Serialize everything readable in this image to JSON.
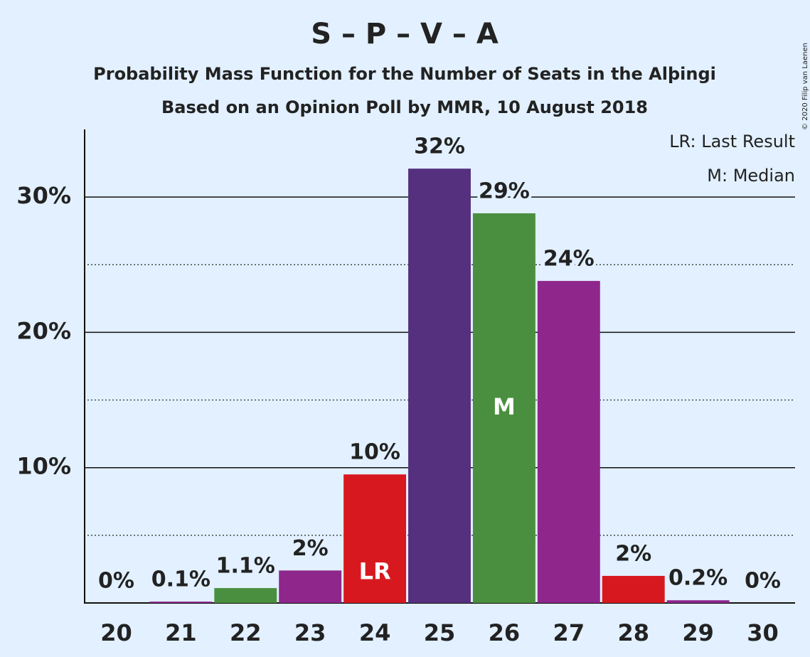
{
  "chart_data": {
    "type": "bar",
    "title": "S – P – V – A",
    "subtitle": "Probability Mass Function for the Number of Seats in the Alþingi",
    "subtitle2": "Based on an Opinion Poll by MMR, 10 August 2018",
    "legend": [
      "LR: Last Result",
      "M: Median"
    ],
    "copyright": "© 2020 Filip van Laenen",
    "categories": [
      "20",
      "21",
      "22",
      "23",
      "24",
      "25",
      "26",
      "27",
      "28",
      "29",
      "30"
    ],
    "values": [
      0,
      0.1,
      1.1,
      2.4,
      9.5,
      32.1,
      28.8,
      23.8,
      2.0,
      0.2,
      0
    ],
    "value_labels": [
      "0%",
      "0.1%",
      "1.1%",
      "2%",
      "10%",
      "32%",
      "29%",
      "24%",
      "2%",
      "0.2%",
      "0%"
    ],
    "colors": [
      "#8e268c",
      "#8e268c",
      "#4a8f3f",
      "#8e268c",
      "#d7191f",
      "#55307e",
      "#4a8f3f",
      "#8e268c",
      "#d7191f",
      "#8e268c",
      "#8e268c"
    ],
    "bar_labels": [
      null,
      null,
      null,
      null,
      "LR",
      null,
      "M",
      null,
      null,
      null,
      null
    ],
    "ylim": [
      0,
      35
    ],
    "yticks": [
      {
        "value": 10,
        "label": "10%"
      },
      {
        "value": 20,
        "label": "20%"
      },
      {
        "value": 30,
        "label": "30%"
      }
    ],
    "minor_yticks": [
      5,
      15,
      25
    ],
    "grid": true
  }
}
